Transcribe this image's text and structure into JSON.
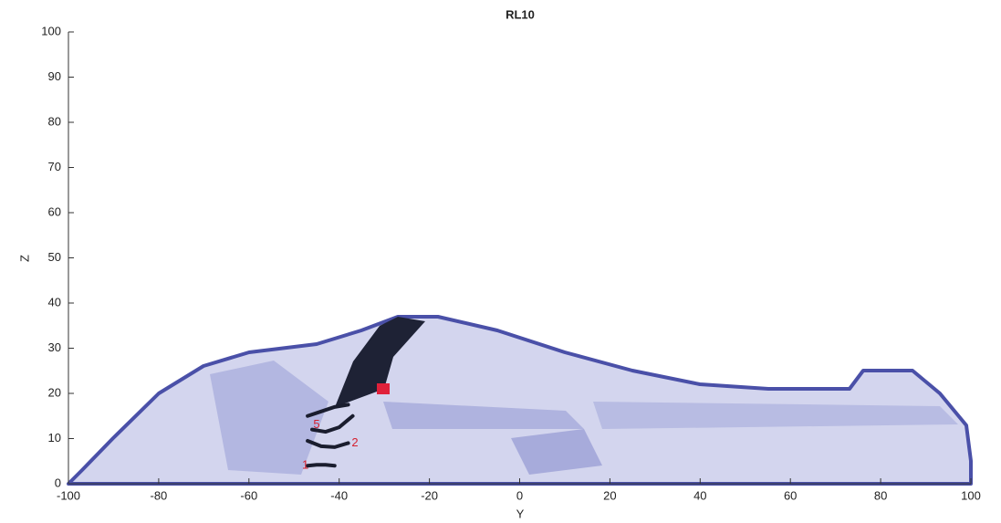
{
  "chart_data": {
    "type": "line",
    "title": "RL10",
    "x_label": "Y",
    "y_label": "Z",
    "series": [
      {
        "color": "#1a1d2e",
        "x": [
          -47,
          -45,
          -43,
          -41
        ],
        "values": [
          4,
          4.2,
          4.2,
          4
        ]
      },
      {
        "color": "#1a1d2e",
        "x": [
          -47,
          -44,
          -41,
          -38
        ],
        "values": [
          9.5,
          8.3,
          8.1,
          9
        ]
      },
      {
        "color": "#1a1d2e",
        "x": [
          -46,
          -43,
          -40,
          -37
        ],
        "values": [
          12,
          11.5,
          12.5,
          15
        ]
      },
      {
        "color": "#1a1d2e",
        "x": [
          -47,
          -44,
          -41,
          -38
        ],
        "values": [
          15,
          16,
          17,
          17.5
        ]
      }
    ],
    "annotations": [
      {
        "text": "1",
        "x": -47.5,
        "y": 4
      },
      {
        "text": "2",
        "x": -36.5,
        "y": 9
      },
      {
        "text": "5",
        "x": -45,
        "y": 13
      }
    ],
    "xlim": [
      -100,
      100
    ],
    "xticks": [
      -100,
      -80,
      -60,
      -40,
      -20,
      0,
      20,
      40,
      60,
      80,
      100
    ],
    "ylim": [
      0,
      100
    ],
    "yticks": [
      0,
      10,
      20,
      30,
      40,
      50,
      60,
      70,
      80,
      90,
      100
    ]
  }
}
